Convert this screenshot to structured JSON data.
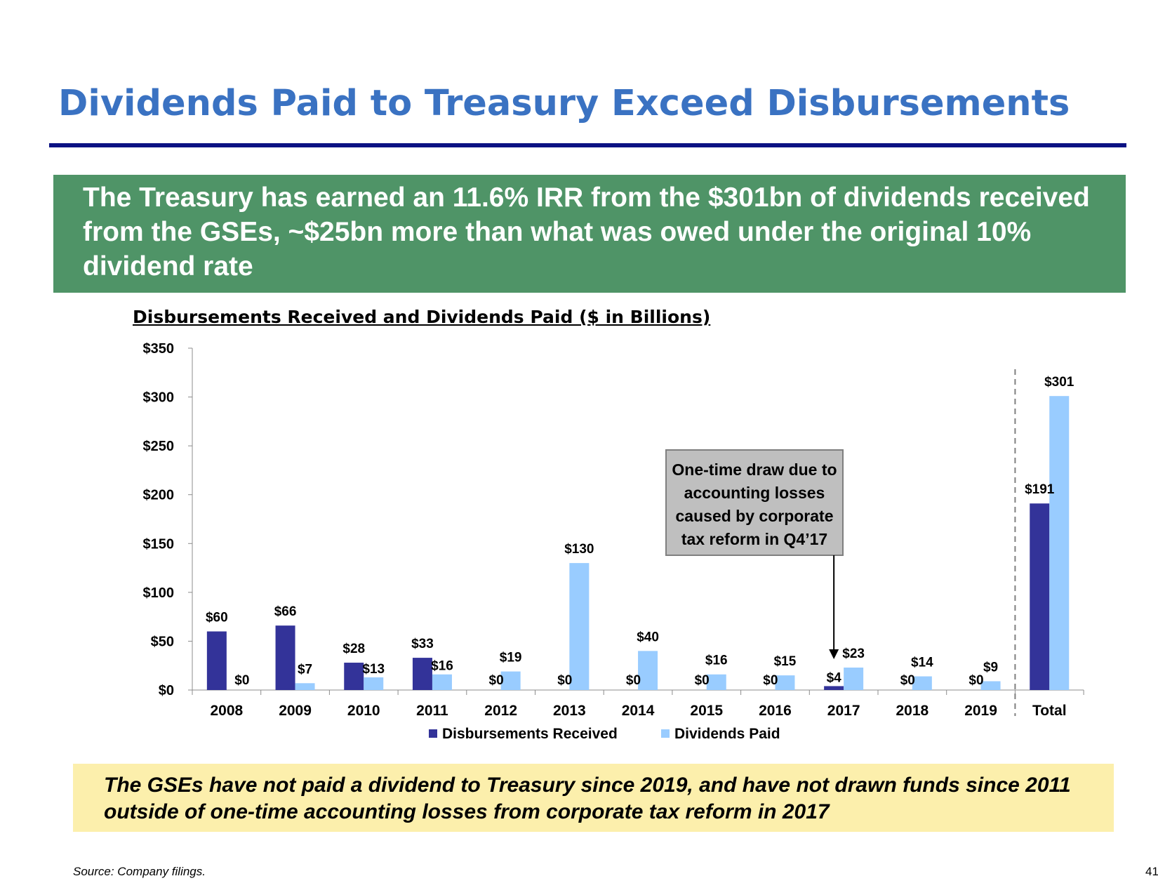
{
  "slide": {
    "title": "Dividends Paid to Treasury Exceed Disbursements",
    "banner": "The Treasury has earned an 11.6% IRR from the $301bn of dividends received from the GSEs, ~$25bn more than what was owed under the original 10% dividend rate",
    "chart_heading": "Disbursements Received and Dividends Paid ($ in Billions)",
    "footer_note": "The GSEs have not paid a dividend to Treasury since 2019, and have not drawn funds since 2011 outside of one-time accounting losses from corporate tax reform in 2017",
    "source": "Source: Company filings.",
    "page_number": "41"
  },
  "colors": {
    "title": "#3a72c2",
    "rule": "#0b1283",
    "banner": "#4f9467",
    "footer": "#fcefac",
    "disbursements": "#333399",
    "dividends": "#99ccff"
  },
  "chart_data": {
    "type": "bar",
    "title": "Disbursements Received and Dividends Paid ($ in Billions)",
    "categories": [
      "2008",
      "2009",
      "2010",
      "2011",
      "2012",
      "2013",
      "2014",
      "2015",
      "2016",
      "2017",
      "2018",
      "2019",
      "Total"
    ],
    "series": [
      {
        "name": "Disbursements Received",
        "color": "#333399",
        "values": [
          60,
          66,
          28,
          33,
          0,
          0,
          0,
          0,
          0,
          4,
          0,
          0,
          191
        ],
        "labels": [
          "$60",
          "$66",
          "$28",
          "$33",
          "$0",
          "$0",
          "$0",
          "$0",
          "$0",
          "$4",
          "$0",
          "$0",
          "$191"
        ]
      },
      {
        "name": "Dividends Paid",
        "color": "#99ccff",
        "values": [
          0,
          7,
          13,
          16,
          19,
          130,
          40,
          16,
          15,
          23,
          14,
          9,
          301
        ],
        "labels": [
          "$0",
          "$7",
          "$13",
          "$16",
          "$19",
          "$130",
          "$40",
          "$16",
          "$15",
          "$23",
          "$14",
          "$9",
          "$301"
        ]
      }
    ],
    "ylim": [
      0,
      350
    ],
    "y_ticks": [
      0,
      50,
      100,
      150,
      200,
      250,
      300,
      350
    ],
    "y_tick_labels": [
      "$0",
      "$50",
      "$100",
      "$150",
      "$200",
      "$250",
      "$300",
      "$350"
    ],
    "xlabel": "",
    "ylabel": "",
    "grid": false,
    "legend_position": "bottom",
    "separator_before": "Total",
    "annotation": {
      "text_lines": [
        "One-time draw due to",
        "accounting losses",
        "caused by corporate",
        "tax reform in Q4’17"
      ],
      "points_to": "2017"
    }
  }
}
